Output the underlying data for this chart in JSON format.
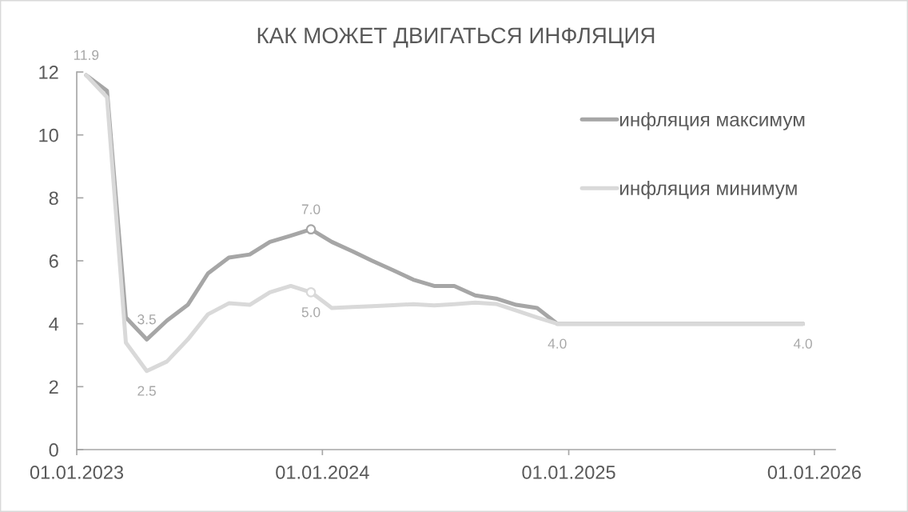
{
  "chart_data": {
    "type": "line",
    "title": "КАК МОЖЕТ ДВИГАТЬСЯ ИНФЛЯЦИЯ",
    "x": [
      "2023-01-15",
      "2023-02-15",
      "2023-03-15",
      "2023-04-15",
      "2023-05-15",
      "2023-06-15",
      "2023-07-15",
      "2023-08-15",
      "2023-09-15",
      "2023-10-15",
      "2023-11-15",
      "2023-12-15",
      "2024-01-15",
      "2024-02-15",
      "2024-03-15",
      "2024-04-15",
      "2024-05-15",
      "2024-06-15",
      "2024-07-15",
      "2024-08-15",
      "2024-09-15",
      "2024-10-15",
      "2024-11-15",
      "2024-12-15",
      "2025-01-15",
      "2025-02-15",
      "2025-03-15",
      "2025-04-15",
      "2025-05-15",
      "2025-06-15",
      "2025-07-15",
      "2025-08-15",
      "2025-09-15",
      "2025-10-15",
      "2025-11-15",
      "2025-12-15"
    ],
    "series": [
      {
        "name": "инфляция максимум",
        "color": "#a6a6a6",
        "values": [
          11.9,
          11.4,
          4.2,
          3.5,
          4.1,
          4.6,
          5.6,
          6.1,
          6.2,
          6.6,
          6.8,
          7.0,
          6.6,
          6.3,
          6.0,
          5.7,
          5.4,
          5.2,
          5.2,
          4.9,
          4.8,
          4.6,
          4.5,
          4.0,
          4.0,
          4.0,
          4.0,
          4.0,
          4.0,
          4.0,
          4.0,
          4.0,
          4.0,
          4.0,
          4.0,
          4.0
        ],
        "value_labels": [
          "11.9",
          null,
          null,
          "3.5",
          null,
          null,
          null,
          null,
          null,
          null,
          null,
          "7.0",
          null,
          null,
          null,
          null,
          null,
          null,
          null,
          null,
          null,
          null,
          null,
          null,
          null,
          null,
          null,
          null,
          null,
          null,
          null,
          null,
          null,
          null,
          null,
          null
        ]
      },
      {
        "name": "инфляция минимум",
        "color": "#d9d9d9",
        "values": [
          11.9,
          11.2,
          3.4,
          2.5,
          2.8,
          3.5,
          4.3,
          4.65,
          4.6,
          5.0,
          5.2,
          5.0,
          4.5,
          4.53,
          4.56,
          4.59,
          4.62,
          4.58,
          4.62,
          4.67,
          4.63,
          4.42,
          4.2,
          4.0,
          4.0,
          4.0,
          4.0,
          4.0,
          4.0,
          4.0,
          4.0,
          4.0,
          4.0,
          4.0,
          4.0,
          4.0
        ],
        "value_labels": [
          null,
          null,
          null,
          "2.5",
          null,
          null,
          null,
          null,
          null,
          null,
          null,
          "5.0",
          null,
          null,
          null,
          null,
          null,
          null,
          null,
          null,
          null,
          null,
          null,
          "4.0",
          null,
          null,
          null,
          null,
          null,
          null,
          null,
          null,
          null,
          null,
          null,
          "4.0"
        ]
      },
      {
        "type": "scatter",
        "x": [
          "2023-12-15"
        ],
        "color": "#a6a6a6",
        "marker": "circle",
        "values": [
          7.0
        ]
      },
      {
        "type": "scatter",
        "x": [
          "2023-12-15"
        ],
        "color": "#d9d9d9",
        "marker": "circle",
        "values": [
          5.0
        ]
      }
    ],
    "xlim": [
      "2023-01-01",
      "2026-02-01"
    ],
    "xticks": [
      {
        "value": "2023-01-01",
        "label": "01.01.2023"
      },
      {
        "value": "2024-01-01",
        "label": "01.01.2024"
      },
      {
        "value": "2025-01-01",
        "label": "01.01.2025"
      },
      {
        "value": "2026-01-01",
        "label": "01.01.2026"
      }
    ],
    "ylim": [
      0,
      12
    ],
    "yticks": [
      0,
      2,
      4,
      6,
      8,
      10,
      12
    ],
    "grid": false,
    "legend": "top right",
    "line_style": "solid"
  }
}
